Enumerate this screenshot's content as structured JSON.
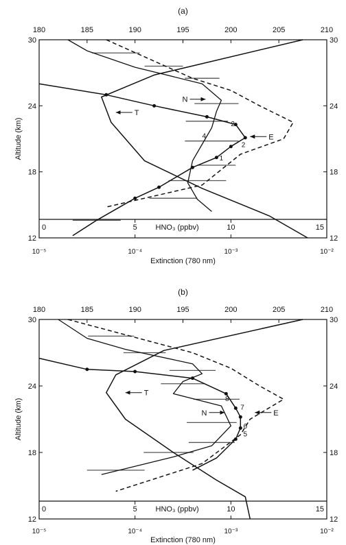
{
  "chart_data": [
    {
      "type": "line",
      "panel_label": "(a)",
      "top_axis": {
        "min": 180,
        "max": 210,
        "ticks": [
          "180",
          "185",
          "190",
          "195",
          "200",
          "205",
          "210"
        ]
      },
      "altitude_axis": {
        "label": "Altitude (km)",
        "min": 12,
        "max": 30,
        "ticks": [
          "12",
          "18",
          "24",
          "30"
        ]
      },
      "hno3_axis": {
        "label": "HNO₃ (ppbv)",
        "min": 0,
        "max": 15,
        "ticks": [
          "0",
          "5",
          "10",
          "15"
        ]
      },
      "extinction_axis": {
        "label": "Extinction (780 nm)",
        "scale": "log",
        "min": 1e-05,
        "max": 0.001,
        "ticks": [
          "10⁻⁵",
          "10⁻⁴",
          "10⁻³",
          "10⁻²"
        ]
      },
      "series": [
        {
          "style": "temperature",
          "points": [
            [
              207.5,
              30
            ],
            [
              192,
              26.8
            ],
            [
              186.5,
              24.8
            ],
            [
              187.5,
              22.5
            ],
            [
              191,
              19
            ],
            [
              197,
              16.5
            ],
            [
              204,
              14
            ],
            [
              208,
              12
            ]
          ]
        },
        {
          "style": "dashed",
          "points": [
            [
              187,
              30
            ],
            [
              196,
              26.5
            ],
            [
              200,
              25.4
            ],
            [
              203,
              24
            ],
            [
              206.5,
              22.5
            ],
            [
              205.5,
              21
            ],
            [
              201,
              19.6
            ],
            [
              197,
              16.8
            ],
            [
              187,
              14.8
            ]
          ]
        },
        {
          "style": "hno3",
          "points": [
            [
              183,
              30
            ],
            [
              185,
              29
            ],
            [
              190,
              27.5
            ],
            [
              197,
              26
            ],
            [
              199,
              24.5
            ],
            [
              198.5,
              23.5
            ],
            [
              198,
              22
            ],
            [
              197,
              20.5
            ],
            [
              196,
              19
            ],
            [
              195.5,
              17
            ],
            [
              196.5,
              15.5
            ],
            [
              198,
              14.4
            ]
          ]
        },
        {
          "style": "extinction",
          "points": [
            [
              180,
              26
            ],
            [
              187,
              25
            ],
            [
              192,
              24
            ],
            [
              197.5,
              23
            ],
            [
              200.5,
              22.3
            ],
            [
              201.5,
              21.1
            ],
            [
              200,
              20.3
            ],
            [
              198.5,
              19.3
            ],
            [
              196,
              18.4
            ],
            [
              192.5,
              16.6
            ],
            [
              190,
              15.6
            ],
            [
              186,
              13.6
            ],
            [
              183.5,
              12.2
            ]
          ]
        }
      ],
      "annotations": [
        {
          "text": "N",
          "arrow": "right",
          "at": [
            195.5,
            24.6
          ]
        },
        {
          "text": "T",
          "arrow": "left",
          "at": [
            188,
            23.4
          ]
        },
        {
          "text": "E",
          "arrow": "left",
          "at": [
            202,
            21.2
          ]
        },
        {
          "text": "2",
          "at": [
            200.2,
            22.4
          ]
        },
        {
          "text": "4",
          "at": [
            197.2,
            21.3
          ]
        },
        {
          "text": "2",
          "at": [
            201.3,
            20.5
          ]
        },
        {
          "text": "1",
          "at": [
            199,
            19.3
          ]
        }
      ],
      "error_bars": [
        [
          188,
          28.8,
          2.5
        ],
        [
          193,
          27.6,
          2
        ],
        [
          197,
          26.5,
          1.8
        ],
        [
          198.5,
          24.2,
          2.3
        ],
        [
          197.5,
          22.6,
          2.2
        ],
        [
          198,
          20.8,
          2.8
        ],
        [
          198.5,
          18.6,
          2
        ],
        [
          196.5,
          17.2,
          3
        ],
        [
          194,
          15.6,
          2.5
        ],
        [
          186,
          13.6,
          2.5
        ]
      ]
    },
    {
      "type": "line",
      "panel_label": "(b)",
      "top_axis": {
        "min": 180,
        "max": 210,
        "ticks": [
          "180",
          "185",
          "190",
          "195",
          "200",
          "205",
          "210"
        ]
      },
      "altitude_axis": {
        "label": "Altitude (km)",
        "min": 12,
        "max": 30,
        "ticks": [
          "12",
          "18",
          "24",
          "30"
        ]
      },
      "hno3_axis": {
        "label": "HNO₃ (ppbv)",
        "min": 0,
        "max": 15,
        "ticks": [
          "0",
          "5",
          "10",
          "15"
        ]
      },
      "extinction_axis": {
        "label": "Extinction (780 nm)",
        "scale": "log",
        "min": 1e-05,
        "max": 0.001,
        "ticks": [
          "10⁻⁵",
          "10⁻⁴",
          "10⁻³",
          "10⁻²"
        ]
      },
      "series": [
        {
          "style": "temperature",
          "points": [
            [
              207.5,
              30
            ],
            [
              193,
              27.2
            ],
            [
              188,
              25
            ],
            [
              187,
              23.4
            ],
            [
              189,
              21
            ],
            [
              194,
              18
            ],
            [
              198.5,
              15.5
            ],
            [
              201.5,
              14
            ],
            [
              202,
              12
            ]
          ]
        },
        {
          "style": "dashed",
          "points": [
            [
              183,
              30
            ],
            [
              196,
              27
            ],
            [
              200,
              25.6
            ],
            [
              203,
              24
            ],
            [
              205.5,
              22.8
            ],
            [
              202,
              21
            ],
            [
              201,
              19.6
            ],
            [
              197,
              17
            ],
            [
              188,
              14.5
            ]
          ]
        },
        {
          "style": "hno3",
          "points": [
            [
              182,
              30
            ],
            [
              185,
              28.3
            ],
            [
              189,
              27.3
            ],
            [
              196,
              26
            ],
            [
              197,
              25.1
            ],
            [
              195,
              24.4
            ],
            [
              194,
              23.3
            ],
            [
              199,
              22.2
            ],
            [
              200,
              20.4
            ],
            [
              198,
              18.6
            ],
            [
              194,
              17.6
            ],
            [
              186.5,
              16
            ]
          ]
        },
        {
          "style": "extinction",
          "points": [
            [
              180,
              26.5
            ],
            [
              185,
              25.5
            ],
            [
              190,
              25.3
            ],
            [
              196,
              24.7
            ],
            [
              199.5,
              23.3
            ],
            [
              200.5,
              22
            ],
            [
              201,
              21.2
            ],
            [
              201,
              20.2
            ],
            [
              200.5,
              19.2
            ],
            [
              198.5,
              17.5
            ],
            [
              196,
              16.4
            ]
          ]
        }
      ],
      "annotations": [
        {
          "text": "T",
          "arrow": "left",
          "at": [
            189,
            23.4
          ]
        },
        {
          "text": "N",
          "arrow": "right",
          "at": [
            197.5,
            21.6
          ]
        },
        {
          "text": "E",
          "arrow": "left",
          "at": [
            202.5,
            21.6
          ]
        },
        {
          "text": "8",
          "at": [
            199.6,
            22.9
          ]
        },
        {
          "text": "7",
          "at": [
            201.2,
            22.1
          ]
        },
        {
          "text": "6",
          "at": [
            201.5,
            20.4
          ]
        },
        {
          "text": "5",
          "at": [
            201.5,
            19.7
          ]
        }
      ],
      "error_bars": [
        [
          187.5,
          28.5,
          2.4
        ],
        [
          191,
          27,
          2.2
        ],
        [
          196,
          25.4,
          2.4
        ],
        [
          195,
          24.2,
          2.3
        ],
        [
          198.5,
          22.8,
          2.4
        ],
        [
          198,
          20.7,
          2.6
        ],
        [
          198,
          18.9,
          2.4
        ],
        [
          193.5,
          18,
          2.6
        ],
        [
          188,
          16.4,
          3
        ]
      ]
    }
  ]
}
